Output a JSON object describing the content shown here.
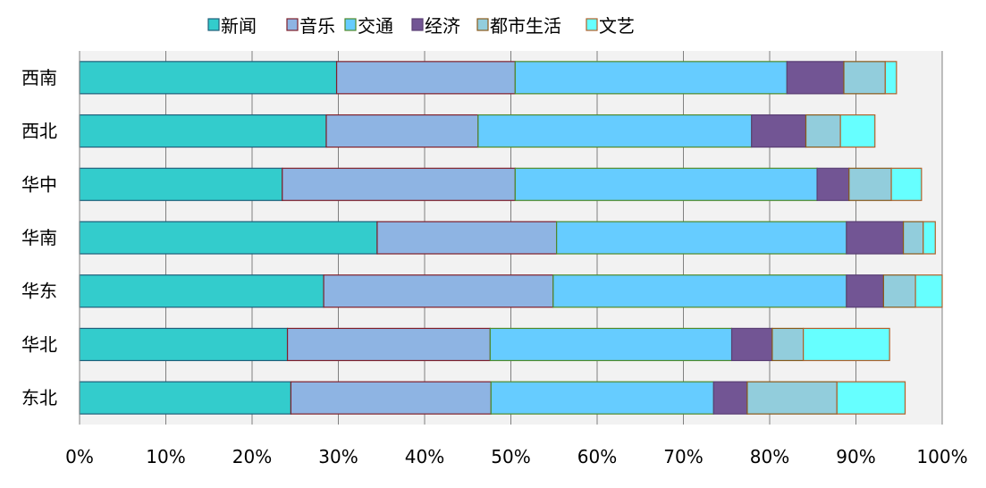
{
  "chart_data": {
    "type": "bar",
    "orientation": "horizontal",
    "stacked": true,
    "categories": [
      "西南",
      "西北",
      "华中",
      "华南",
      "华东",
      "华北",
      "东北"
    ],
    "series": [
      {
        "name": "新闻",
        "values": [
          29.8,
          28.6,
          23.5,
          34.5,
          28.3,
          24.1,
          24.5
        ]
      },
      {
        "name": "音乐",
        "values": [
          20.7,
          17.6,
          27.0,
          20.8,
          26.6,
          23.5,
          23.2
        ]
      },
      {
        "name": "交通",
        "values": [
          31.5,
          31.7,
          35.0,
          33.6,
          34.0,
          28.0,
          25.8
        ]
      },
      {
        "name": "经济",
        "values": [
          6.6,
          6.3,
          3.7,
          6.6,
          4.3,
          4.7,
          3.9
        ]
      },
      {
        "name": "都市生活",
        "values": [
          4.8,
          4.0,
          4.9,
          2.3,
          3.7,
          3.6,
          10.4
        ]
      },
      {
        "name": "文艺",
        "values": [
          1.3,
          4.0,
          3.5,
          1.4,
          3.1,
          10.0,
          7.9
        ]
      }
    ],
    "xlim": [
      0,
      100
    ],
    "x_ticks": [
      "0%",
      "10%",
      "20%",
      "30%",
      "40%",
      "50%",
      "60%",
      "70%",
      "80%",
      "90%",
      "100%"
    ],
    "legend_position": "top",
    "grid": true,
    "plot_background": "#f2f2f2",
    "colors": {
      "fills": [
        "#33cccc",
        "#8eb4e3",
        "#66ccff",
        "#725594",
        "#92cddc",
        "#66ffff"
      ],
      "strokes": [
        "#1f5f7a",
        "#7f1f2a",
        "#4f8a2a",
        "#5a3f74",
        "#8a5a1a",
        "#b0602a"
      ],
      "grid": "#808080"
    }
  }
}
